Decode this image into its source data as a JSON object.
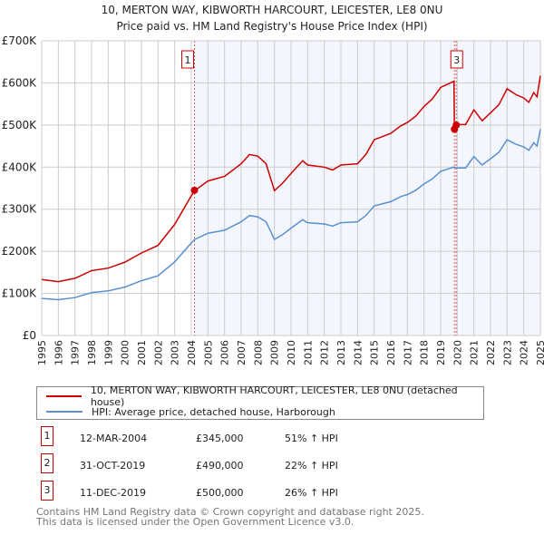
{
  "title": "10, MERTON WAY, KIBWORTH HARCOURT, LEICESTER, LE8 0NU",
  "subtitle": "Price paid vs. HM Land Registry's House Price Index (HPI)",
  "chart_data": {
    "type": "line",
    "title": "10, MERTON WAY, KIBWORTH HARCOURT, LEICESTER, LE8 0NU",
    "subtitle": "Price paid vs. HM Land Registry's House Price Index (HPI)",
    "xlim": [
      1995,
      2025
    ],
    "ylim": [
      0,
      700000
    ],
    "grid": true,
    "y_ticks": [
      0,
      100000,
      200000,
      300000,
      400000,
      500000,
      600000,
      700000
    ],
    "y_tick_labels": [
      "£0",
      "£100K",
      "£200K",
      "£300K",
      "£400K",
      "£500K",
      "£600K",
      "£700K"
    ],
    "x_ticks": [
      1995,
      1996,
      1997,
      1998,
      1999,
      2000,
      2001,
      2002,
      2003,
      2004,
      2005,
      2006,
      2007,
      2008,
      2009,
      2010,
      2011,
      2012,
      2013,
      2014,
      2015,
      2016,
      2017,
      2018,
      2019,
      2020,
      2021,
      2022,
      2023,
      2024,
      2025
    ],
    "x_tick_labels": [
      "1995",
      "1996",
      "1997",
      "1998",
      "1999",
      "2000",
      "2001",
      "2002",
      "2003",
      "2004",
      "2005",
      "2006",
      "2007",
      "2008",
      "2009",
      "2010",
      "2011",
      "2012",
      "2013",
      "2014",
      "2015",
      "2016",
      "2017",
      "2018",
      "2019",
      "2020",
      "2021",
      "2022",
      "2023",
      "2024",
      "2025"
    ],
    "shaded_from": 2004.19,
    "series": [
      {
        "name": "10, MERTON WAY, KIBWORTH HARCOURT, LEICESTER, LE8 0NU (detached house)",
        "color": "#cc0000",
        "x": [
          1995,
          1996,
          1997,
          1998,
          1999,
          2000,
          2001,
          2002,
          2003,
          2004,
          2004.2,
          2005,
          2006,
          2007,
          2007.5,
          2008,
          2008.5,
          2009,
          2009.5,
          2010,
          2010.7,
          2011,
          2012,
          2012.5,
          2013,
          2014,
          2014.5,
          2015,
          2016,
          2016.6,
          2017,
          2017.5,
          2018,
          2018.5,
          2019,
          2019.8,
          2019.83,
          2019.95,
          2020.5,
          2021,
          2021.5,
          2022,
          2022.5,
          2023,
          2023.5,
          2024,
          2024.3,
          2024.6,
          2024.8,
          2025
        ],
        "y": [
          133000,
          128000,
          136000,
          154000,
          160000,
          174000,
          196000,
          214000,
          264000,
          332000,
          344000,
          367000,
          378000,
          408000,
          430000,
          426000,
          408000,
          344000,
          362000,
          385000,
          415000,
          405000,
          400000,
          393000,
          405000,
          408000,
          430000,
          465000,
          480000,
          498000,
          506000,
          521000,
          544000,
          562000,
          589000,
          604000,
          490000,
          501000,
          501000,
          536000,
          510000,
          529000,
          548000,
          586000,
          573000,
          564000,
          554000,
          577000,
          567000,
          617000
        ]
      },
      {
        "name": "HPI: Average price, detached house, Harborough",
        "color": "#5b8fd0",
        "x": [
          1995,
          1996,
          1997,
          1998,
          1999,
          2000,
          2001,
          2002,
          2003,
          2004,
          2004.2,
          2005,
          2006,
          2007,
          2007.5,
          2008,
          2008.5,
          2009,
          2009.5,
          2010,
          2010.7,
          2011,
          2012,
          2012.5,
          2013,
          2014,
          2014.5,
          2015,
          2016,
          2016.6,
          2017,
          2017.5,
          2018,
          2018.5,
          2019,
          2019.8,
          2019.95,
          2020.5,
          2021,
          2021.5,
          2022,
          2022.5,
          2023,
          2023.5,
          2024,
          2024.3,
          2024.6,
          2024.8,
          2025
        ],
        "y": [
          88000,
          85000,
          90000,
          102000,
          106000,
          115000,
          130000,
          142000,
          175000,
          220000,
          228000,
          243000,
          250000,
          270000,
          285000,
          282000,
          270000,
          228000,
          240000,
          255000,
          275000,
          268000,
          265000,
          260000,
          268000,
          270000,
          285000,
          308000,
          318000,
          330000,
          335000,
          345000,
          360000,
          372000,
          390000,
          400000,
          398000,
          398000,
          425000,
          405000,
          420000,
          435000,
          465000,
          455000,
          448000,
          440000,
          458000,
          450000,
          490000
        ]
      }
    ],
    "sales": [
      {
        "label": "1",
        "x": 2004.19,
        "y": 345000
      },
      {
        "label": "2",
        "x": 2019.83,
        "y": 490000
      },
      {
        "label": "3",
        "x": 2019.94,
        "y": 500000
      }
    ]
  },
  "legend": {
    "property": "10, MERTON WAY, KIBWORTH HARCOURT, LEICESTER, LE8 0NU (detached house)",
    "hpi": "HPI: Average price, detached house, Harborough"
  },
  "transactions": [
    {
      "num": "1",
      "date": "12-MAR-2004",
      "price": "£345,000",
      "change": "51% ↑ HPI"
    },
    {
      "num": "2",
      "date": "31-OCT-2019",
      "price": "£490,000",
      "change": "22% ↑ HPI"
    },
    {
      "num": "3",
      "date": "11-DEC-2019",
      "price": "£500,000",
      "change": "26% ↑ HPI"
    }
  ],
  "footer": {
    "line1": "Contains HM Land Registry data © Crown copyright and database right 2025.",
    "line2": "This data is licensed under the Open Government Licence v3.0."
  }
}
